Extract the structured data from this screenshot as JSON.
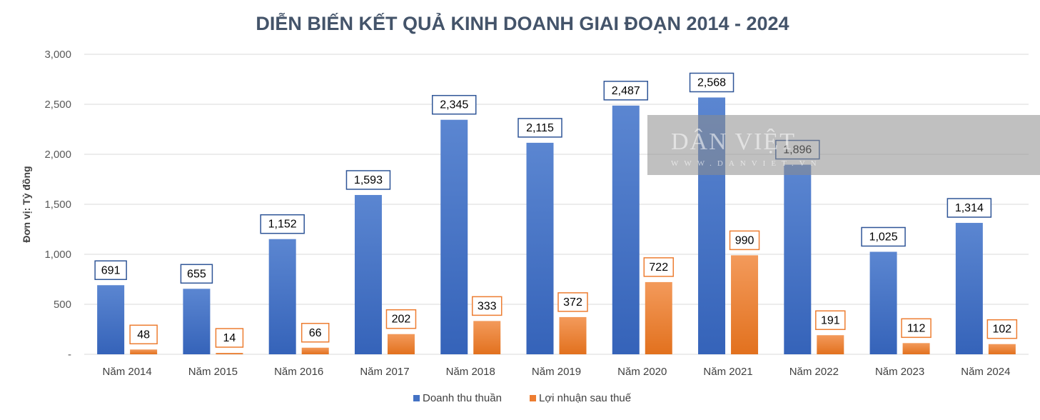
{
  "chart_data": {
    "type": "bar",
    "title": "DIỄN BIẾN KẾT QUẢ KINH DOANH GIAI ĐOẠN 2014 - 2024",
    "ylabel": "Đơn vị: Tỷ đồng",
    "xlabel": "",
    "ylim": [
      0,
      3000
    ],
    "yticks": [
      0,
      500,
      1000,
      1500,
      2000,
      2500,
      3000
    ],
    "ytick_labels": [
      "-",
      "500",
      "1,000",
      "1,500",
      "2,000",
      "2,500",
      "3,000"
    ],
    "grid": true,
    "legend_position": "bottom",
    "categories": [
      "Năm 2014",
      "Năm 2015",
      "Năm 2016",
      "Năm 2017",
      "Năm 2018",
      "Năm 2019",
      "Năm 2020",
      "Năm 2021",
      "Năm 2022",
      "Năm 2023",
      "Năm 2024"
    ],
    "series": [
      {
        "name": "Doanh thu thuần",
        "color": "#4472c4",
        "values": [
          691,
          655,
          1152,
          1593,
          2345,
          2115,
          2487,
          2568,
          1896,
          1025,
          1314
        ],
        "labels": [
          "691",
          "655",
          "1,152",
          "1,593",
          "2,345",
          "2,115",
          "2,487",
          "2,568",
          "1,896",
          "1,025",
          "1,314"
        ]
      },
      {
        "name": "Lợi nhuận sau thuế",
        "color": "#ed7d31",
        "values": [
          48,
          14,
          66,
          202,
          333,
          372,
          722,
          990,
          191,
          112,
          102
        ],
        "labels": [
          "48",
          "14",
          "66",
          "202",
          "333",
          "372",
          "722",
          "990",
          "191",
          "112",
          "102"
        ]
      }
    ]
  },
  "watermark": {
    "brand": "DÂN VIỆT",
    "url": "WWW.DANVIET.VN"
  }
}
